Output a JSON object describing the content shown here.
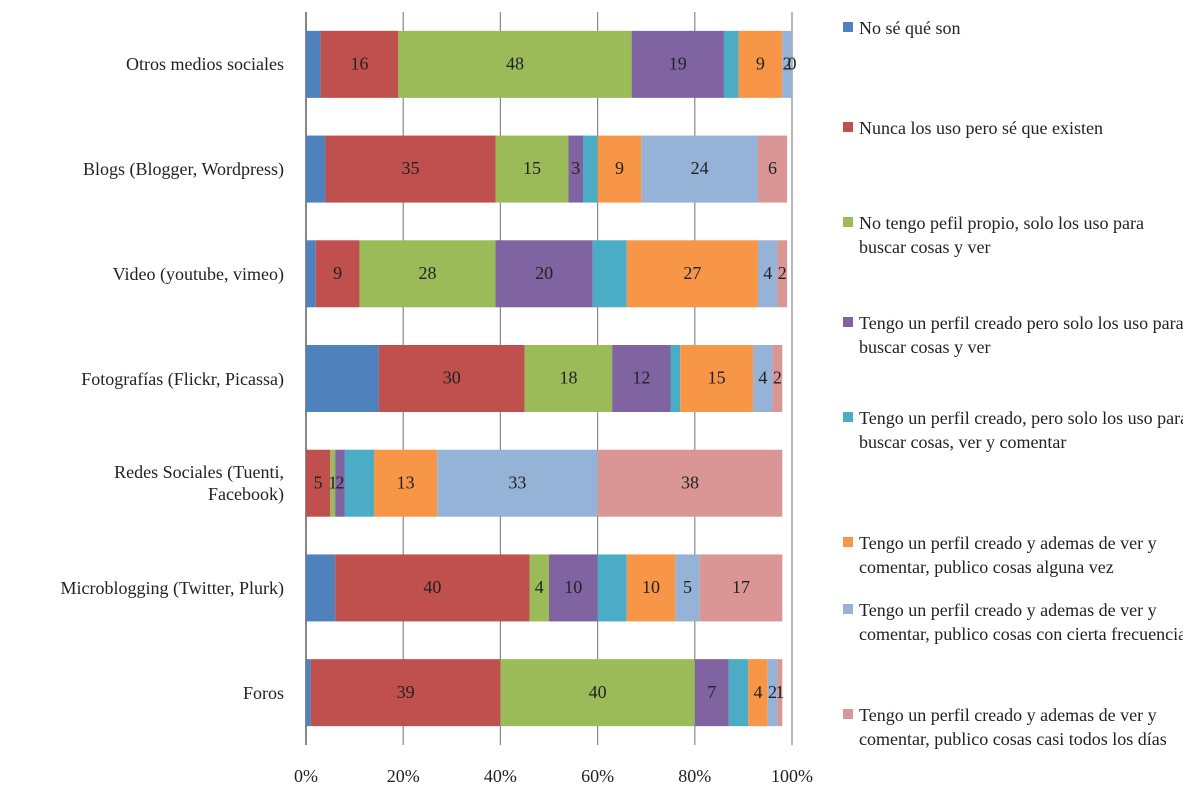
{
  "chart_data": {
    "type": "stacked-bar-horizontal",
    "categories": [
      "Otros medios sociales",
      "Blogs (Blogger, Wordpress)",
      "Video (youtube, vimeo)",
      "Fotografías (Flickr, Picassa)",
      "Redes Sociales (Tuenti, Facebook)",
      "Microblogging (Twitter, Plurk)",
      "Foros"
    ],
    "xlim": [
      0,
      100
    ],
    "xticks": [
      {
        "value": 0,
        "label": "0%"
      },
      {
        "value": 20,
        "label": "20%"
      },
      {
        "value": 40,
        "label": "40%"
      },
      {
        "value": 60,
        "label": "60%"
      },
      {
        "value": 80,
        "label": "80%"
      },
      {
        "value": 100,
        "label": "100%"
      }
    ],
    "grid": true,
    "legend": "right",
    "series": [
      {
        "name": "No sé qué son",
        "color": "#4f81bd",
        "values": [
          3,
          4,
          2,
          15,
          0,
          6,
          1
        ],
        "value_labels": [
          null,
          null,
          null,
          null,
          null,
          null,
          null
        ]
      },
      {
        "name": "Nunca los uso pero sé que existen",
        "color": "#c0504d",
        "values": [
          16,
          35,
          9,
          30,
          5,
          40,
          39
        ],
        "value_labels": [
          "16",
          "35",
          "9",
          "30",
          "5",
          "40",
          "39"
        ]
      },
      {
        "name": "No tengo pefil propio, solo los uso para buscar cosas y ver",
        "color": "#9bbb59",
        "values": [
          48,
          15,
          28,
          18,
          1,
          4,
          40
        ],
        "value_labels": [
          "48",
          "15",
          "28",
          "18",
          "1",
          "4",
          "40"
        ]
      },
      {
        "name": "Tengo un perfil creado pero solo los uso para buscar cosas y ver",
        "color": "#8064a2",
        "values": [
          19,
          3,
          20,
          12,
          2,
          10,
          7
        ],
        "value_labels": [
          "19",
          "3",
          "20",
          "12",
          "2",
          "10",
          "7"
        ]
      },
      {
        "name": "Tengo un perfil creado, pero solo los uso para buscar cosas, ver y comentar",
        "color": "#4bacc6",
        "values": [
          3,
          3,
          7,
          2,
          6,
          6,
          4
        ],
        "value_labels": [
          null,
          null,
          null,
          null,
          null,
          null,
          null
        ]
      },
      {
        "name": "Tengo un perfil creado y ademas de ver y comentar, publico cosas alguna vez",
        "color": "#f79646",
        "values": [
          9,
          9,
          27,
          15,
          13,
          10,
          4
        ],
        "value_labels": [
          "9",
          "9",
          "27",
          "15",
          "13",
          "10",
          "4"
        ]
      },
      {
        "name": "Tengo un perfil creado y ademas de ver y comentar, publico cosas con cierta frecuencia",
        "color": "#95b3d7",
        "values": [
          2,
          24,
          4,
          4,
          33,
          5,
          2
        ],
        "value_labels": [
          "2",
          "24",
          "4",
          "4",
          "33",
          "5",
          "2"
        ]
      },
      {
        "name": "Tengo un perfil creado y ademas de ver y comentar, publico cosas casi todos los días",
        "color": "#d99694",
        "values": [
          0,
          6,
          2,
          2,
          38,
          17,
          1
        ],
        "value_labels": [
          "0",
          "6",
          "2",
          "2",
          "38",
          "17",
          "1"
        ]
      }
    ]
  }
}
